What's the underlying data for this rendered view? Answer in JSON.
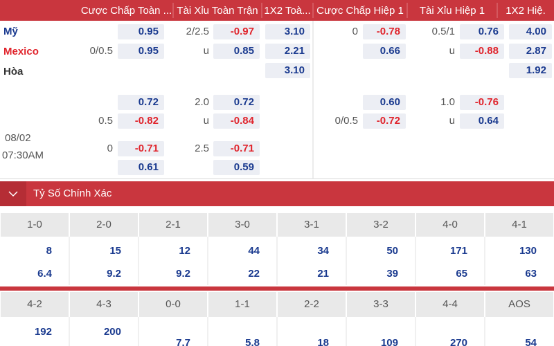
{
  "header": {
    "columns": [
      "Cược Chấp Toàn ...",
      "Tài Xỉu Toàn Trận",
      "1X2 Toà...",
      "Cược Chấp Hiệp 1",
      "Tài Xỉu Hiệp 1",
      "1X2 Hiệ."
    ]
  },
  "match": {
    "teams": [
      "Mỹ",
      "Mexico",
      "Hòa"
    ],
    "date": "08/02",
    "time": "07:30AM",
    "rows": [
      [
        null,
        "0.95",
        "2/2.5",
        "-0.97",
        "3.10",
        "0",
        "-0.78",
        "0.5/1",
        "0.76",
        "4.00"
      ],
      [
        "0/0.5",
        "0.95",
        "u",
        "0.85",
        "2.21",
        null,
        "0.66",
        "u",
        "-0.88",
        "2.87"
      ],
      [
        null,
        null,
        null,
        null,
        "3.10",
        null,
        null,
        null,
        null,
        "1.92"
      ],
      [
        null,
        "0.72",
        "2.0",
        "0.72",
        null,
        null,
        "0.60",
        "1.0",
        "-0.76",
        null
      ],
      [
        "0.5",
        "-0.82",
        "u",
        "-0.84",
        null,
        "0/0.5",
        "-0.72",
        "u",
        "0.64",
        null
      ],
      [
        "0",
        "-0.71",
        "2.5",
        "-0.71",
        null,
        null,
        null,
        null,
        null,
        null
      ],
      [
        null,
        "0.61",
        null,
        "0.59",
        null,
        null,
        null,
        null,
        null,
        null
      ]
    ]
  },
  "section": {
    "title": "Tỷ Số Chính Xác"
  },
  "scores": {
    "groups": [
      {
        "labels": [
          "1-0",
          "2-0",
          "2-1",
          "3-0",
          "3-1",
          "3-2",
          "4-0",
          "4-1"
        ],
        "rows": [
          [
            "8",
            "15",
            "12",
            "44",
            "34",
            "50",
            "171",
            "130"
          ],
          [
            "6.4",
            "9.2",
            "9.2",
            "22",
            "21",
            "39",
            "65",
            "63"
          ]
        ]
      },
      {
        "labels": [
          "4-2",
          "4-3",
          "0-0",
          "1-1",
          "2-2",
          "3-3",
          "4-4",
          "AOS"
        ],
        "rows": [
          [
            "192",
            "200",
            null,
            null,
            null,
            null,
            null,
            null
          ],
          [
            null,
            null,
            "7.7",
            "5.8",
            "18",
            "109",
            "270",
            "54"
          ]
        ]
      }
    ]
  }
}
